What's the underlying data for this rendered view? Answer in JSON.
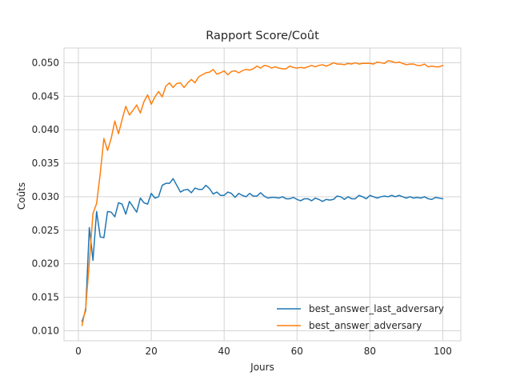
{
  "chart_data": {
    "type": "line",
    "title": "Rapport Score/Coût",
    "xlabel": "Jours",
    "ylabel": "Coûts",
    "xlim": [
      -3.95,
      104.95
    ],
    "ylim": [
      0.0085,
      0.0522
    ],
    "xticks": [
      0,
      20,
      40,
      60,
      80,
      100
    ],
    "yticks": [
      0.01,
      0.015,
      0.02,
      0.025,
      0.03,
      0.035,
      0.04,
      0.045,
      0.05
    ],
    "xtick_labels": [
      "0",
      "20",
      "40",
      "60",
      "80",
      "100"
    ],
    "ytick_labels": [
      "0.010",
      "0.015",
      "0.020",
      "0.025",
      "0.030",
      "0.035",
      "0.040",
      "0.045",
      "0.050"
    ],
    "grid": true,
    "legend_position": "lower-right",
    "x": [
      1,
      2,
      3,
      4,
      5,
      6,
      7,
      8,
      9,
      10,
      11,
      12,
      13,
      14,
      15,
      16,
      17,
      18,
      19,
      20,
      21,
      22,
      23,
      24,
      25,
      26,
      27,
      28,
      29,
      30,
      31,
      32,
      33,
      34,
      35,
      36,
      37,
      38,
      39,
      40,
      41,
      42,
      43,
      44,
      45,
      46,
      47,
      48,
      49,
      50,
      51,
      52,
      53,
      54,
      55,
      56,
      57,
      58,
      59,
      60,
      61,
      62,
      63,
      64,
      65,
      66,
      67,
      68,
      69,
      70,
      71,
      72,
      73,
      74,
      75,
      76,
      77,
      78,
      79,
      80,
      81,
      82,
      83,
      84,
      85,
      86,
      87,
      88,
      89,
      90,
      91,
      92,
      93,
      94,
      95,
      96,
      97,
      98,
      99,
      100
    ],
    "series": [
      {
        "name": "best_answer_last_adversary",
        "color": "#1f77b4",
        "values": [
          0.0114,
          0.013,
          0.0254,
          0.0205,
          0.0278,
          0.024,
          0.0239,
          0.0278,
          0.0277,
          0.027,
          0.0291,
          0.0289,
          0.0274,
          0.0293,
          0.0285,
          0.0277,
          0.0298,
          0.0291,
          0.0289,
          0.0305,
          0.0298,
          0.03,
          0.0317,
          0.032,
          0.032,
          0.0327,
          0.0317,
          0.0307,
          0.031,
          0.0311,
          0.0306,
          0.0313,
          0.0311,
          0.0311,
          0.0317,
          0.0312,
          0.0304,
          0.0307,
          0.0302,
          0.0302,
          0.0307,
          0.0305,
          0.0299,
          0.0305,
          0.0302,
          0.03,
          0.0305,
          0.0301,
          0.0301,
          0.0306,
          0.0301,
          0.0298,
          0.0299,
          0.0299,
          0.0298,
          0.03,
          0.0297,
          0.0297,
          0.0299,
          0.0296,
          0.0294,
          0.0297,
          0.0297,
          0.0294,
          0.0298,
          0.0296,
          0.0293,
          0.0296,
          0.0295,
          0.0296,
          0.0301,
          0.03,
          0.0296,
          0.03,
          0.0297,
          0.0297,
          0.0302,
          0.03,
          0.0297,
          0.0302,
          0.03,
          0.0298,
          0.03,
          0.0301,
          0.03,
          0.0302,
          0.03,
          0.0302,
          0.03,
          0.0298,
          0.03,
          0.0298,
          0.0299,
          0.0298,
          0.03,
          0.0297,
          0.0296,
          0.0299,
          0.0298,
          0.0297
        ]
      },
      {
        "name": "best_answer_adversary",
        "color": "#ff7f0e",
        "values": [
          0.0108,
          0.0134,
          0.0202,
          0.0275,
          0.029,
          0.0335,
          0.0387,
          0.0369,
          0.0387,
          0.0413,
          0.0394,
          0.0415,
          0.0435,
          0.0422,
          0.0429,
          0.0437,
          0.0425,
          0.0442,
          0.0452,
          0.0438,
          0.0449,
          0.0457,
          0.0449,
          0.0465,
          0.047,
          0.0463,
          0.0469,
          0.047,
          0.0463,
          0.047,
          0.0475,
          0.047,
          0.0479,
          0.0482,
          0.0485,
          0.0486,
          0.049,
          0.0483,
          0.0485,
          0.0488,
          0.0482,
          0.0487,
          0.0488,
          0.0485,
          0.0488,
          0.049,
          0.0489,
          0.0491,
          0.0495,
          0.0492,
          0.0496,
          0.0495,
          0.0492,
          0.0494,
          0.0492,
          0.0491,
          0.0491,
          0.0495,
          0.0493,
          0.0492,
          0.0493,
          0.0492,
          0.0494,
          0.0496,
          0.0494,
          0.0496,
          0.0497,
          0.0495,
          0.0497,
          0.05,
          0.0498,
          0.0498,
          0.0497,
          0.0499,
          0.0498,
          0.05,
          0.0498,
          0.0499,
          0.0499,
          0.0499,
          0.0498,
          0.0501,
          0.05,
          0.0499,
          0.0503,
          0.0502,
          0.05,
          0.0501,
          0.0499,
          0.0497,
          0.0498,
          0.0498,
          0.0496,
          0.0496,
          0.0498,
          0.0494,
          0.0495,
          0.0494,
          0.0494,
          0.0496
        ]
      }
    ]
  }
}
